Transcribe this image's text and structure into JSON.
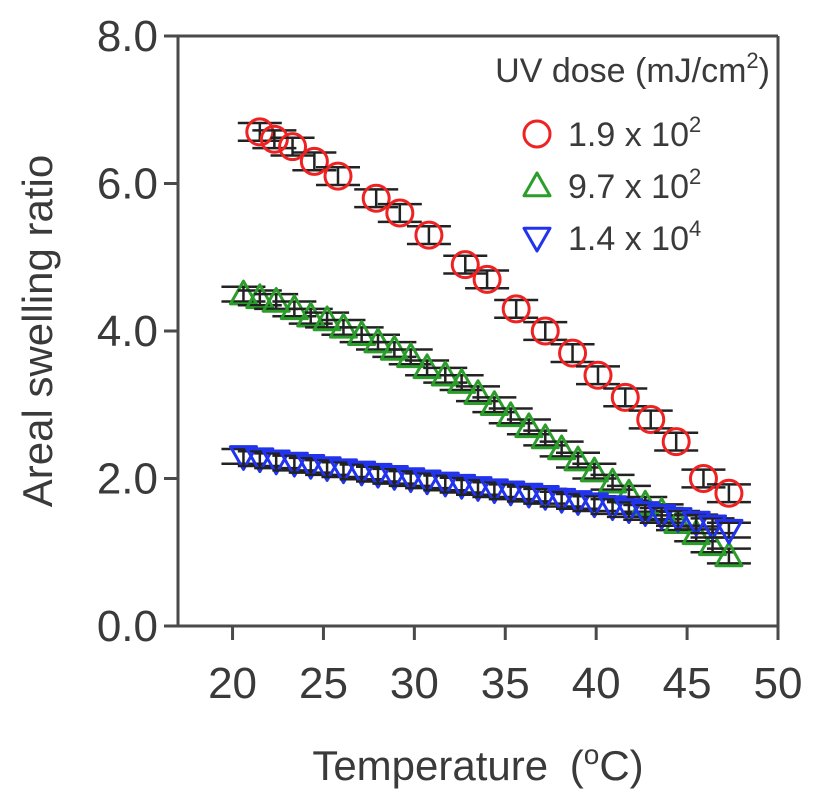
{
  "chart_data": {
    "type": "scatter",
    "title": "",
    "xlabel": "Temperature",
    "xlabel_unit_prefix": "(",
    "xlabel_unit_sup": "o",
    "xlabel_unit_rest": "C)",
    "ylabel": "Areal swelling ratio",
    "xlim": [
      17,
      50
    ],
    "ylim": [
      0,
      8
    ],
    "xticks": [
      20,
      25,
      30,
      35,
      40,
      45,
      50
    ],
    "xtick_labels": [
      "20",
      "25",
      "30",
      "35",
      "40",
      "45",
      "50"
    ],
    "yticks": [
      0,
      2,
      4,
      6,
      8
    ],
    "ytick_labels": [
      "0.0",
      "2.0",
      "4.0",
      "6.0",
      "8.0"
    ],
    "legend_title": "UV dose (mJ/cm",
    "legend_title_sup": "2",
    "legend_title_end": ")",
    "legend_position": "top-right",
    "series": [
      {
        "name": "1.9 x 10",
        "name_sup": "2",
        "marker": "circle",
        "color": "#ee2222",
        "x": [
          21.5,
          22.3,
          23.3,
          24.5,
          25.8,
          27.9,
          29.2,
          30.8,
          32.8,
          34.0,
          35.6,
          37.2,
          38.7,
          40.1,
          41.6,
          43.0,
          44.4,
          45.9,
          47.3
        ],
        "y": [
          6.7,
          6.6,
          6.5,
          6.3,
          6.1,
          5.8,
          5.6,
          5.3,
          4.9,
          4.7,
          4.3,
          4.0,
          3.7,
          3.4,
          3.1,
          2.8,
          2.5,
          2.0,
          1.8
        ],
        "err": [
          0.12,
          0.12,
          0.12,
          0.12,
          0.12,
          0.12,
          0.12,
          0.12,
          0.12,
          0.12,
          0.12,
          0.12,
          0.12,
          0.12,
          0.12,
          0.12,
          0.12,
          0.12,
          0.12
        ]
      },
      {
        "name": "9.7 x 10",
        "name_sup": "2",
        "marker": "triangle-up",
        "color": "#2a9d2a",
        "x": [
          20.6,
          21.5,
          22.4,
          23.4,
          24.3,
          25.2,
          26.1,
          27.1,
          28.0,
          28.9,
          29.8,
          30.7,
          31.7,
          32.6,
          33.5,
          34.4,
          35.3,
          36.3,
          37.2,
          38.1,
          39.0,
          39.9,
          40.9,
          41.8,
          42.7,
          43.6,
          44.5,
          45.5,
          46.4,
          47.3
        ],
        "y": [
          4.5,
          4.45,
          4.4,
          4.3,
          4.2,
          4.15,
          4.05,
          3.95,
          3.85,
          3.75,
          3.65,
          3.5,
          3.4,
          3.3,
          3.15,
          3.0,
          2.85,
          2.7,
          2.55,
          2.4,
          2.25,
          2.1,
          1.95,
          1.8,
          1.65,
          1.55,
          1.4,
          1.25,
          1.1,
          0.95
        ],
        "err": [
          0.1,
          0.1,
          0.1,
          0.1,
          0.1,
          0.1,
          0.1,
          0.1,
          0.1,
          0.1,
          0.1,
          0.1,
          0.1,
          0.1,
          0.1,
          0.1,
          0.1,
          0.1,
          0.1,
          0.1,
          0.1,
          0.1,
          0.1,
          0.1,
          0.1,
          0.1,
          0.1,
          0.1,
          0.1,
          0.1
        ]
      },
      {
        "name": "1.4 x 10",
        "name_sup": "4",
        "marker": "triangle-down",
        "color": "#2233ee",
        "x": [
          20.6,
          21.5,
          22.4,
          23.4,
          24.3,
          25.2,
          26.1,
          27.1,
          28.0,
          28.9,
          29.8,
          30.7,
          31.7,
          32.6,
          33.5,
          34.4,
          35.3,
          36.3,
          37.2,
          38.1,
          39.0,
          39.9,
          40.9,
          41.8,
          42.7,
          43.6,
          44.5,
          45.5,
          46.4,
          47.3
        ],
        "y": [
          2.3,
          2.27,
          2.24,
          2.21,
          2.18,
          2.15,
          2.12,
          2.09,
          2.06,
          2.03,
          2.0,
          1.97,
          1.94,
          1.91,
          1.88,
          1.85,
          1.82,
          1.79,
          1.76,
          1.72,
          1.69,
          1.66,
          1.62,
          1.58,
          1.54,
          1.5,
          1.46,
          1.41,
          1.36,
          1.3
        ],
        "err": [
          0.1,
          0.1,
          0.1,
          0.1,
          0.1,
          0.1,
          0.1,
          0.1,
          0.1,
          0.1,
          0.1,
          0.1,
          0.1,
          0.1,
          0.1,
          0.1,
          0.1,
          0.1,
          0.1,
          0.1,
          0.1,
          0.1,
          0.1,
          0.1,
          0.1,
          0.1,
          0.1,
          0.1,
          0.1,
          0.1
        ]
      }
    ]
  }
}
